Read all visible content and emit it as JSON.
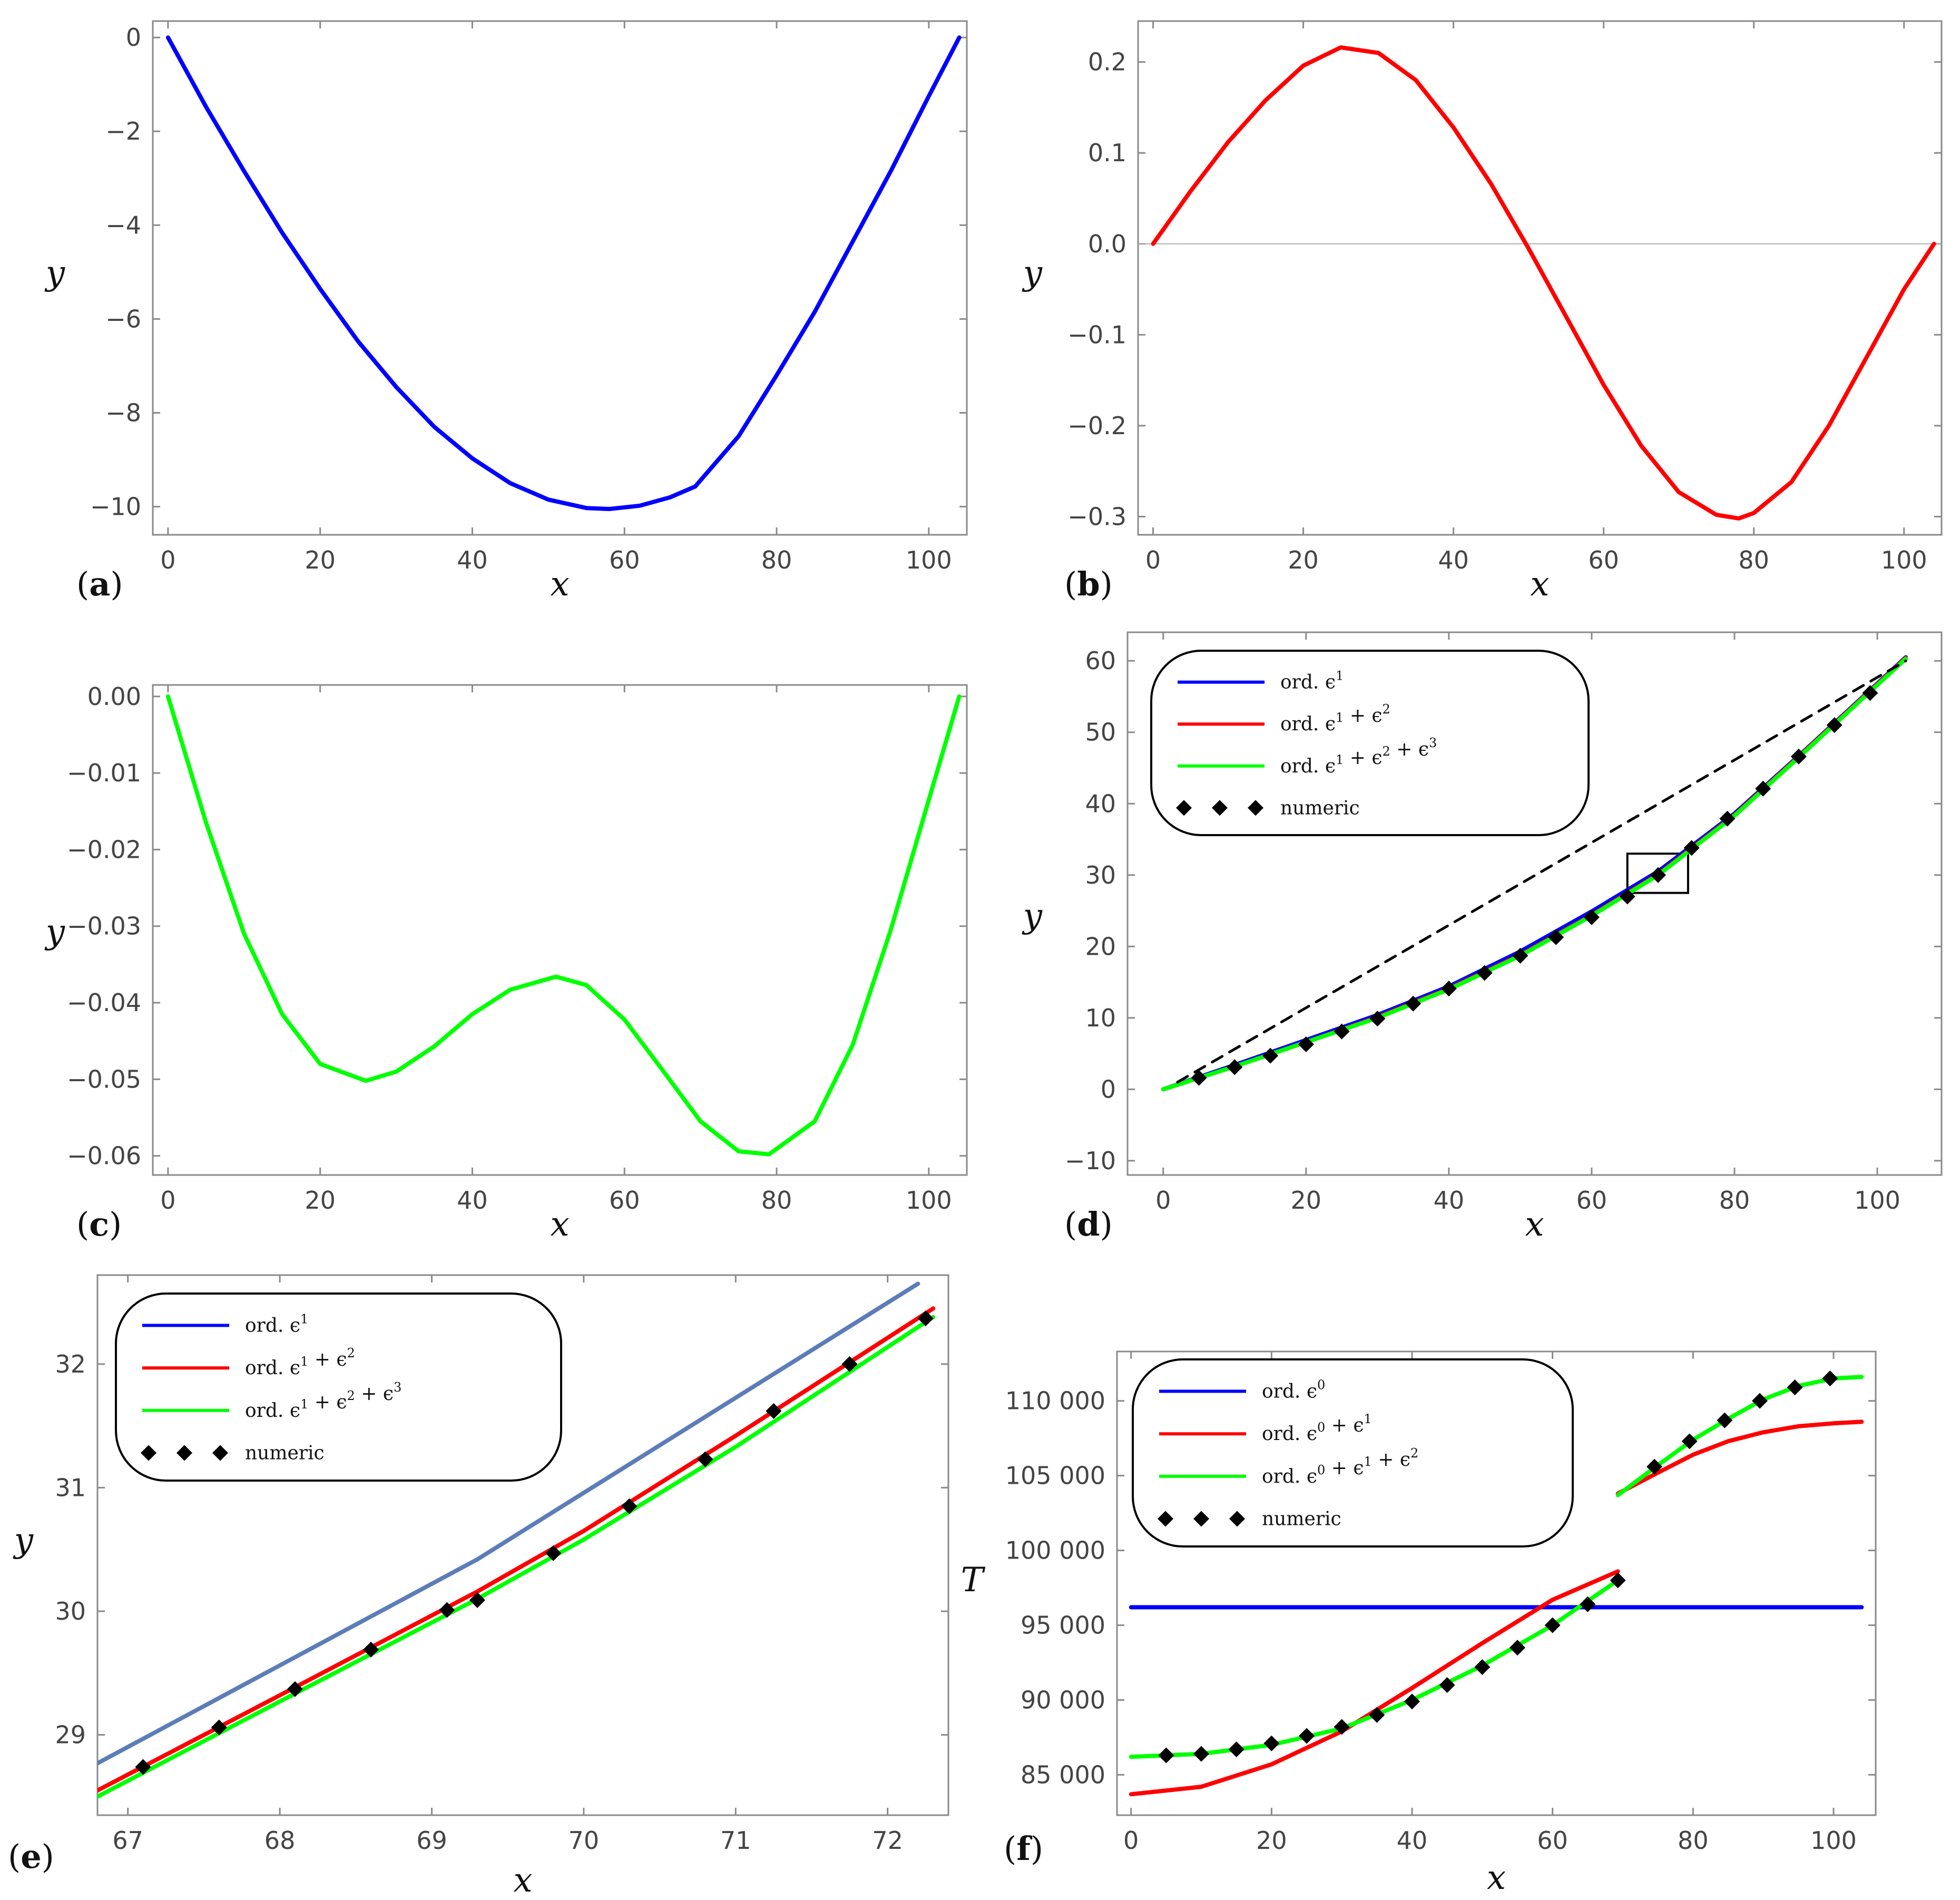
{
  "chart_data": [
    {
      "id": "a",
      "type": "line",
      "panel_label": "a",
      "xlabel": "x",
      "ylabel": "y",
      "xlim": [
        -2,
        105
      ],
      "ylim": [
        -10.6,
        0.35
      ],
      "xticks": [
        0,
        20,
        40,
        60,
        80,
        100
      ],
      "yticks": [
        0,
        -2,
        -4,
        -6,
        -8,
        -10
      ],
      "series": [
        {
          "name": "y",
          "color": "#0000ff",
          "x": [
            0,
            5,
            10,
            15,
            20,
            25,
            30,
            35,
            40,
            45,
            50,
            55,
            58,
            62,
            66,
            69.3,
            75,
            80,
            85,
            90,
            95,
            100,
            104
          ],
          "y": [
            0,
            -1.48,
            -2.85,
            -4.16,
            -5.36,
            -6.48,
            -7.45,
            -8.3,
            -8.97,
            -9.5,
            -9.85,
            -10.03,
            -10.05,
            -9.98,
            -9.8,
            -9.57,
            -8.5,
            -7.2,
            -5.85,
            -4.35,
            -2.85,
            -1.25,
            0
          ]
        }
      ]
    },
    {
      "id": "b",
      "type": "line",
      "panel_label": "b",
      "xlabel": "x",
      "ylabel": "y",
      "xlim": [
        -2,
        105
      ],
      "ylim": [
        -0.32,
        0.245
      ],
      "xticks": [
        0,
        20,
        40,
        60,
        80,
        100
      ],
      "yticks": [
        0.2,
        0.1,
        0.0,
        -0.1,
        -0.2,
        -0.3
      ],
      "ytick_labels": [
        "0.2",
        "0.1",
        "0.0",
        "-0.1",
        "-0.2",
        "-0.3"
      ],
      "zero_line": true,
      "series": [
        {
          "name": "y",
          "color": "#ff0000",
          "x": [
            0,
            5,
            10,
            15,
            20,
            25,
            30,
            35,
            40,
            45,
            50,
            55,
            60,
            65,
            70,
            75,
            78,
            80,
            85,
            90,
            95,
            100,
            104
          ],
          "y": [
            0,
            0.058,
            0.112,
            0.158,
            0.196,
            0.216,
            0.21,
            0.18,
            0.128,
            0.066,
            -0.005,
            -0.08,
            -0.155,
            -0.222,
            -0.273,
            -0.298,
            -0.302,
            -0.296,
            -0.262,
            -0.2,
            -0.125,
            -0.05,
            0
          ]
        }
      ]
    },
    {
      "id": "c",
      "type": "line",
      "panel_label": "c",
      "xlabel": "x",
      "ylabel": "y",
      "xlim": [
        -2,
        105
      ],
      "ylim": [
        -0.0625,
        0.0015
      ],
      "xticks": [
        0,
        20,
        40,
        60,
        80,
        100
      ],
      "yticks": [
        0.0,
        -0.01,
        -0.02,
        -0.03,
        -0.04,
        -0.05,
        -0.06
      ],
      "ytick_labels": [
        "0.00",
        "-0.01",
        "-0.02",
        "-0.03",
        "-0.04",
        "-0.05",
        "-0.06"
      ],
      "series": [
        {
          "name": "y",
          "color": "#00ff00",
          "x": [
            0,
            5,
            10,
            15,
            20,
            26,
            30,
            35,
            40,
            45,
            51,
            55,
            60,
            65,
            70,
            75,
            79,
            85,
            90,
            95,
            100,
            104
          ],
          "y": [
            0,
            -0.0165,
            -0.031,
            -0.0415,
            -0.048,
            -0.0502,
            -0.049,
            -0.0457,
            -0.0415,
            -0.0383,
            -0.0366,
            -0.0377,
            -0.0422,
            -0.0488,
            -0.0555,
            -0.0594,
            -0.0598,
            -0.0555,
            -0.0455,
            -0.0305,
            -0.0135,
            0
          ]
        }
      ]
    },
    {
      "id": "d",
      "type": "line",
      "panel_label": "d",
      "xlabel": "x",
      "ylabel": "y",
      "xlim": [
        -5,
        109
      ],
      "ylim": [
        -12,
        64
      ],
      "xticks": [
        0,
        20,
        40,
        60,
        80,
        100
      ],
      "yticks": [
        -10,
        0,
        10,
        20,
        30,
        40,
        50,
        60
      ],
      "legend_position": "top-left",
      "legend": [
        {
          "label": "ord. ϵ",
          "sup": "1",
          "color": "#0000ff",
          "style": "line"
        },
        {
          "label": "ord. ϵ",
          "sup": "1",
          "tail": " + ϵ",
          "sup2": "2",
          "color": "#ff0000",
          "style": "line"
        },
        {
          "label": "ord. ϵ",
          "sup": "1",
          "tail": " + ϵ",
          "sup2": "2",
          "tail2": " + ϵ",
          "sup3": "3",
          "color": "#00ff00",
          "style": "line"
        },
        {
          "label": "numeric",
          "color": "#000000",
          "style": "diamond"
        }
      ],
      "series": [
        {
          "name": "ord. ϵ1",
          "color": "#0000ff",
          "x": [
            0,
            10,
            20,
            30,
            40,
            50,
            60,
            69.3,
            80,
            90,
            104
          ],
          "y": [
            0,
            3.4,
            6.9,
            10.4,
            14.4,
            19.3,
            24.9,
            30.5,
            38.6,
            47.6,
            60.5
          ]
        },
        {
          "name": "ord. ϵ1 + ϵ2",
          "color": "#ff0000",
          "x": [
            0,
            10,
            20,
            30,
            40,
            50,
            60,
            69.3,
            80,
            90,
            104
          ],
          "y": [
            0,
            3.2,
            6.6,
            10.1,
            14.1,
            18.8,
            24.4,
            30.1,
            38.4,
            47.5,
            60.4
          ]
        },
        {
          "name": "ord. ϵ1 + ϵ2 + ϵ3",
          "color": "#00ff00",
          "x": [
            0,
            10,
            20,
            30,
            40,
            50,
            60,
            69.3,
            80,
            90,
            104
          ],
          "y": [
            0,
            3.2,
            6.6,
            10.0,
            14.0,
            18.7,
            24.3,
            30.0,
            38.3,
            47.4,
            60.3
          ]
        },
        {
          "name": "dashed",
          "color": "#000000",
          "style": "dashed",
          "x": [
            2,
            104
          ],
          "y": [
            1,
            60
          ]
        },
        {
          "name": "numeric",
          "color": "#000000",
          "style": "diamond",
          "x": [
            5,
            10,
            15,
            20,
            25,
            30,
            35,
            40,
            45,
            50,
            55,
            60,
            65,
            69.3,
            74,
            79,
            84,
            89,
            94,
            99
          ],
          "y": [
            1.6,
            3.1,
            4.7,
            6.3,
            8.1,
            9.9,
            12.0,
            14.1,
            16.3,
            18.7,
            21.3,
            24.1,
            27.0,
            30.0,
            33.8,
            37.9,
            42.1,
            46.6,
            51.0,
            55.5
          ]
        }
      ],
      "inset_box": {
        "x": [
          65,
          73.5
        ],
        "y": [
          27.5,
          33
        ]
      }
    },
    {
      "id": "e",
      "type": "line",
      "panel_label": "e",
      "xlabel": "x",
      "ylabel": "y",
      "xlim": [
        66.8,
        72.4
      ],
      "ylim": [
        28.35,
        32.72
      ],
      "xticks": [
        67,
        68,
        69,
        70,
        71,
        72
      ],
      "yticks": [
        29,
        30,
        31,
        32
      ],
      "legend_position": "top-left",
      "legend": [
        {
          "label": "ord. ϵ",
          "sup": "1",
          "color": "#0000ff",
          "style": "line"
        },
        {
          "label": "ord. ϵ",
          "sup": "1",
          "tail": " + ϵ",
          "sup2": "2",
          "color": "#ff0000",
          "style": "line"
        },
        {
          "label": "ord. ϵ",
          "sup": "1",
          "tail": " + ϵ",
          "sup2": "2",
          "tail2": " + ϵ",
          "sup3": "3",
          "color": "#00ff00",
          "style": "line"
        },
        {
          "label": "numeric",
          "color": "#000000",
          "style": "diamond"
        }
      ],
      "series": [
        {
          "name": "ord. ϵ1",
          "color": "#5b7db8",
          "x": [
            66.8,
            69.3,
            72.2
          ],
          "y": [
            28.77,
            30.42,
            32.65
          ]
        },
        {
          "name": "ord. ϵ1 + ϵ2",
          "color": "#ff0000",
          "x": [
            66.8,
            68,
            69.3,
            70,
            71,
            72.3
          ],
          "y": [
            28.55,
            29.32,
            30.16,
            30.65,
            31.42,
            32.45
          ]
        },
        {
          "name": "ord. ϵ1 + ϵ2 + ϵ3",
          "color": "#00ff00",
          "x": [
            66.8,
            68,
            69.3,
            70,
            71,
            72.3
          ],
          "y": [
            28.5,
            29.27,
            30.1,
            30.58,
            31.33,
            32.38
          ]
        },
        {
          "name": "numeric",
          "color": "#000000",
          "style": "diamond",
          "x": [
            67.1,
            67.6,
            68.1,
            68.6,
            69.1,
            69.3,
            69.8,
            70.3,
            70.8,
            71.25,
            71.75,
            72.25
          ],
          "y": [
            28.74,
            29.06,
            29.37,
            29.69,
            30.01,
            30.09,
            30.47,
            30.85,
            31.23,
            31.62,
            32.0,
            32.37
          ]
        }
      ]
    },
    {
      "id": "f",
      "type": "line",
      "panel_label": "f",
      "xlabel": "x",
      "ylabel": "T",
      "xlim": [
        -2,
        106
      ],
      "ylim": [
        82300,
        113300
      ],
      "xticks": [
        0,
        20,
        40,
        60,
        80,
        100
      ],
      "yticks": [
        85000,
        90000,
        95000,
        100000,
        105000,
        110000
      ],
      "ytick_labels": [
        "85 000",
        "90 000",
        "95 000",
        "100 000",
        "105 000",
        "110 000"
      ],
      "legend_position": "top-left",
      "legend": [
        {
          "label": "ord. ϵ",
          "sup": "0",
          "color": "#0000ff",
          "style": "line"
        },
        {
          "label": "ord. ϵ",
          "sup": "0",
          "tail": " + ϵ",
          "sup2": "1",
          "color": "#ff0000",
          "style": "line"
        },
        {
          "label": "ord. ϵ",
          "sup": "0",
          "tail": " + ϵ",
          "sup2": "1",
          "tail2": " + ϵ",
          "sup3": "2",
          "color": "#00ff00",
          "style": "line"
        },
        {
          "label": "numeric",
          "color": "#000000",
          "style": "diamond"
        }
      ],
      "series": [
        {
          "name": "ord. ϵ0",
          "color": "#0000ff",
          "x": [
            0,
            104
          ],
          "y": [
            96200,
            96200
          ]
        },
        {
          "name": "ord. ϵ0 + ϵ1 (left)",
          "color": "#ff0000",
          "x": [
            0,
            10,
            20,
            30,
            40,
            50,
            60,
            69.3
          ],
          "y": [
            83700,
            84200,
            85700,
            87900,
            90800,
            93800,
            96700,
            98600
          ]
        },
        {
          "name": "ord. ϵ0 + ϵ1 (right)",
          "color": "#ff0000",
          "x": [
            69.3,
            75,
            80,
            85,
            90,
            95,
            100,
            104
          ],
          "y": [
            103800,
            105200,
            106400,
            107300,
            107900,
            108300,
            108500,
            108600
          ]
        },
        {
          "name": "ord. ϵ0 + ϵ1 + ϵ2 (left)",
          "color": "#00ff00",
          "x": [
            0,
            10,
            20,
            30,
            40,
            50,
            60,
            69.3
          ],
          "y": [
            86200,
            86400,
            87000,
            88100,
            90000,
            92300,
            95000,
            98000
          ]
        },
        {
          "name": "ord. ϵ0 + ϵ1 + ϵ2 (right)",
          "color": "#00ff00",
          "x": [
            69.3,
            75,
            80,
            85,
            90,
            95,
            100,
            104
          ],
          "y": [
            103700,
            105700,
            107400,
            108800,
            110100,
            111000,
            111500,
            111600
          ]
        },
        {
          "name": "numeric",
          "color": "#000000",
          "style": "diamond",
          "x": [
            5,
            10,
            15,
            20,
            25,
            30,
            35,
            40,
            45,
            50,
            55,
            60,
            65,
            69.3,
            74.5,
            79.5,
            84.5,
            89.5,
            94.5,
            99.5
          ],
          "y": [
            86300,
            86400,
            86700,
            87100,
            87600,
            88200,
            89000,
            89900,
            91000,
            92200,
            93500,
            95000,
            96400,
            98000,
            105600,
            107300,
            108700,
            110000,
            110900,
            111500
          ]
        }
      ]
    }
  ]
}
